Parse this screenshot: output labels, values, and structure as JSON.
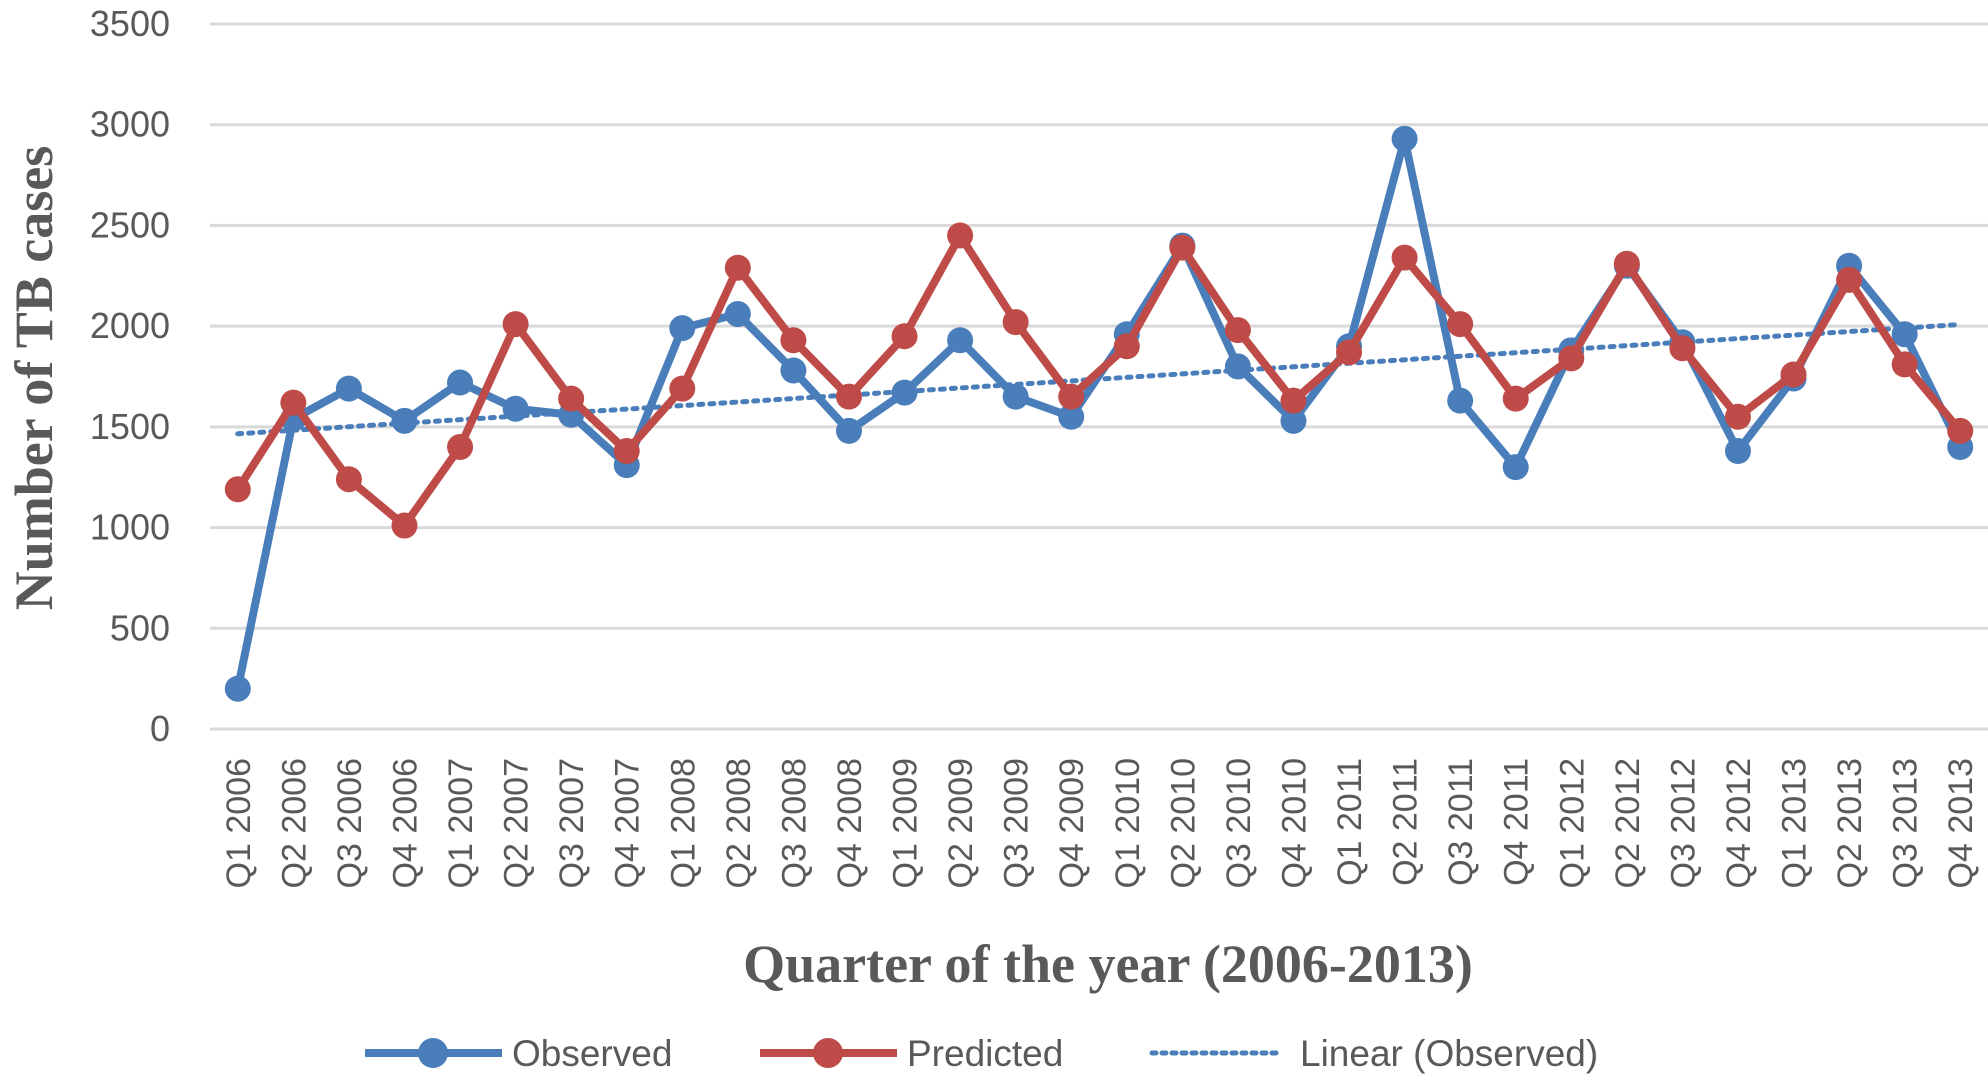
{
  "chart_data": {
    "type": "line",
    "title": "",
    "xlabel": "Quarter of the year (2006-2013)",
    "ylabel": "Number of TB cases",
    "ylim": [
      0,
      3500
    ],
    "yticks": [
      0,
      500,
      1000,
      1500,
      2000,
      2500,
      3000,
      3500
    ],
    "grid": "horizontal",
    "legend_position": "bottom",
    "categories": [
      "Q1 2006",
      "Q2 2006",
      "Q3 2006",
      "Q4 2006",
      "Q1 2007",
      "Q2 2007",
      "Q3 2007",
      "Q4 2007",
      "Q1 2008",
      "Q2 2008",
      "Q3 2008",
      "Q4 2008",
      "Q1 2009",
      "Q2 2009",
      "Q3 2009",
      "Q4 2009",
      "Q1 2010",
      "Q2 2010",
      "Q3 2010",
      "Q4 2010",
      "Q1 2011",
      "Q2 2011",
      "Q3 2011",
      "Q4 2011",
      "Q1 2012",
      "Q2 2012",
      "Q3 2012",
      "Q4 2012",
      "Q1 2013",
      "Q2 2013",
      "Q3 2013",
      "Q4 2013"
    ],
    "series": [
      {
        "name": "Observed",
        "color": "#4A7EBB",
        "values": [
          200,
          1540,
          1690,
          1530,
          1720,
          1590,
          1560,
          1310,
          1990,
          2060,
          1780,
          1480,
          1670,
          1930,
          1650,
          1550,
          1960,
          2400,
          1800,
          1530,
          1900,
          2930,
          1630,
          1300,
          1880,
          2300,
          1920,
          1380,
          1740,
          2300,
          1960,
          1400
        ]
      },
      {
        "name": "Predicted",
        "color": "#BE4B48",
        "values": [
          1190,
          1620,
          1240,
          1010,
          1400,
          2010,
          1640,
          1380,
          1690,
          2290,
          1930,
          1650,
          1950,
          2450,
          2020,
          1650,
          1900,
          2390,
          1980,
          1630,
          1870,
          2340,
          2010,
          1640,
          1840,
          2310,
          1890,
          1550,
          1760,
          2230,
          1810,
          1480
        ]
      }
    ],
    "trendline": {
      "name": "Linear (Observed)",
      "color": "#4A7EBB",
      "type": "linear",
      "fit_of": "Observed"
    }
  }
}
